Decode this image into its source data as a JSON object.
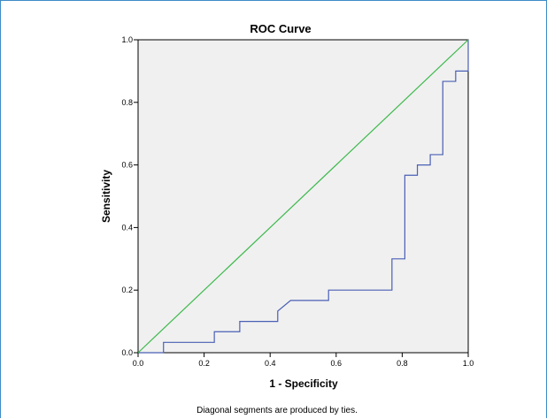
{
  "chart_data": {
    "type": "line",
    "title": "ROC Curve",
    "xlabel": "1 - Specificity",
    "ylabel": "Sensitivity",
    "xlim": [
      0,
      1
    ],
    "ylim": [
      0,
      1
    ],
    "x_ticks": [
      "0.0",
      "0.2",
      "0.4",
      "0.6",
      "0.8",
      "1.0"
    ],
    "y_ticks": [
      "0.0",
      "0.2",
      "0.4",
      "0.6",
      "0.8",
      "1.0"
    ],
    "grid": false,
    "footnote": "Diagonal segments are produced by ties.",
    "series": [
      {
        "color": "#4a5fb5",
        "step": true,
        "points": [
          [
            0.0,
            0.0
          ],
          [
            0.077,
            0.0
          ],
          [
            0.077,
            0.033
          ],
          [
            0.231,
            0.033
          ],
          [
            0.231,
            0.067
          ],
          [
            0.308,
            0.067
          ],
          [
            0.308,
            0.1
          ],
          [
            0.423,
            0.1
          ],
          [
            0.423,
            0.133
          ],
          [
            0.462,
            0.167
          ],
          [
            0.577,
            0.167
          ],
          [
            0.577,
            0.2
          ],
          [
            0.769,
            0.2
          ],
          [
            0.769,
            0.3
          ],
          [
            0.808,
            0.3
          ],
          [
            0.808,
            0.567
          ],
          [
            0.846,
            0.567
          ],
          [
            0.846,
            0.6
          ],
          [
            0.885,
            0.6
          ],
          [
            0.885,
            0.633
          ],
          [
            0.923,
            0.633
          ],
          [
            0.923,
            0.867
          ],
          [
            0.962,
            0.867
          ],
          [
            0.962,
            0.9
          ],
          [
            1.0,
            0.9
          ],
          [
            1.0,
            1.0
          ]
        ]
      },
      {
        "color": "#3cb94c",
        "step": false,
        "points": [
          [
            0.0,
            0.0
          ],
          [
            1.0,
            1.0
          ]
        ]
      }
    ]
  }
}
